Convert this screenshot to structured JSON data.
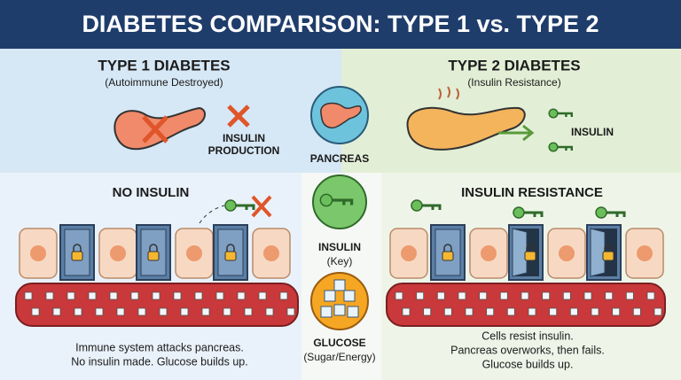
{
  "header": {
    "title": "DIABETES COMPARISON: TYPE 1 vs. TYPE 2"
  },
  "type1": {
    "title": "TYPE 1 DIABETES",
    "subtitle": "(Autoimmune Destroyed)",
    "production_label": [
      "INSULIN",
      "PRODUCTION"
    ],
    "section_title": "NO INSULIN",
    "caption": [
      "Immune system attacks pancreas.",
      "No insulin made. Glucose builds up."
    ]
  },
  "legend": {
    "items": [
      {
        "label": "PANCREAS"
      },
      {
        "label": "INSULIN",
        "sublabel": "(Key)"
      },
      {
        "label": "GLUCOSE",
        "sublabel": "(Sugar/Energy)"
      }
    ]
  },
  "type2": {
    "title": "TYPE 2 DIABETES",
    "subtitle": "(Insulin Resistance)",
    "insulin_label": "INSULIN",
    "section_title": "INSULIN RESISTANCE",
    "caption": [
      "Cells resist insulin.",
      "Pancreas overworks, then fails.",
      "Glucose builds up."
    ]
  }
}
